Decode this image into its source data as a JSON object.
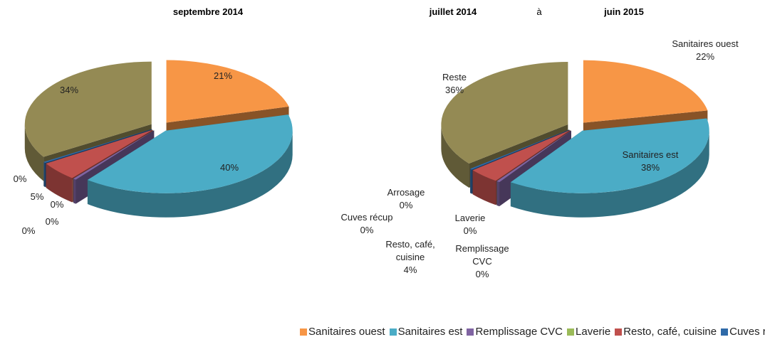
{
  "chart_data": [
    {
      "type": "pie",
      "title": [
        "septembre 2014"
      ],
      "categories": [
        "Sanitaires ouest",
        "Sanitaires est",
        "Remplissage CVC",
        "Laverie",
        "Resto, café, cuisine",
        "Cuves récup",
        "Arrosage",
        "Reste"
      ],
      "values": [
        21,
        40,
        0.4,
        0,
        5,
        0.3,
        0,
        34
      ],
      "value_labels": [
        "21%",
        "40%",
        "0%",
        "0%",
        "5%",
        "0%",
        "0%",
        "34%"
      ],
      "colors": [
        "#f79646",
        "#4bacc6",
        "#8064a2",
        "#9bbb59",
        "#c0504d",
        "#2f6aa8",
        "#fac090",
        "#948a54"
      ],
      "legend": "bottom"
    },
    {
      "type": "pie",
      "title": [
        "juillet 2014",
        "à",
        "juin 2015"
      ],
      "categories": [
        "Sanitaires ouest",
        "Sanitaires est",
        "Remplissage CVC",
        "Laverie",
        "Resto, café, cuisine",
        "Cuves récup",
        "Arrosage",
        "Reste"
      ],
      "values": [
        22,
        38,
        0.4,
        0,
        4,
        0.3,
        0,
        36
      ],
      "value_labels": [
        "22%",
        "38%",
        "0%",
        "0%",
        "4%",
        "0%",
        "0%",
        "36%"
      ],
      "colors": [
        "#f79646",
        "#4bacc6",
        "#8064a2",
        "#9bbb59",
        "#c0504d",
        "#2f6aa8",
        "#fac090",
        "#948a54"
      ],
      "legend": "bottom"
    }
  ]
}
